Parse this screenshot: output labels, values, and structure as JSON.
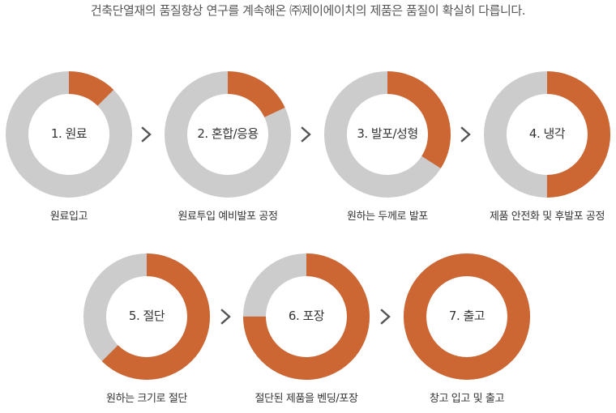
{
  "headline": "건축단열재의 품질향상 연구를 계속해온 ㈜제이에이치의 제품은 품질이 확실히 다릅니다.",
  "colors": {
    "progress": "#cc6633",
    "track": "#cccccc",
    "text": "#333333",
    "arrow": "#555555"
  },
  "steps": [
    {
      "title": "1. 원료",
      "desc": "원료입고",
      "fraction": 0.125
    },
    {
      "title": "2. 혼합/응용",
      "desc": "원료투입 예비발포 공정",
      "fraction": 0.18
    },
    {
      "title": "3. 발포/성형",
      "desc": "원하는 두께로 발포",
      "fraction": 0.34
    },
    {
      "title": "4. 냉각",
      "desc": "제품 안전화 및 후발포 공정",
      "fraction": 0.5
    },
    {
      "title": "5. 절단",
      "desc": "원하는 크기로 절단",
      "fraction": 0.625
    },
    {
      "title": "6. 포장",
      "desc": "절단된 제품을 벤딩/포장",
      "fraction": 0.75
    },
    {
      "title": "7. 출고",
      "desc": "창고 입고 및 출고",
      "fraction": 1.0
    }
  ],
  "arrow_icon": "chevron-right-icon"
}
